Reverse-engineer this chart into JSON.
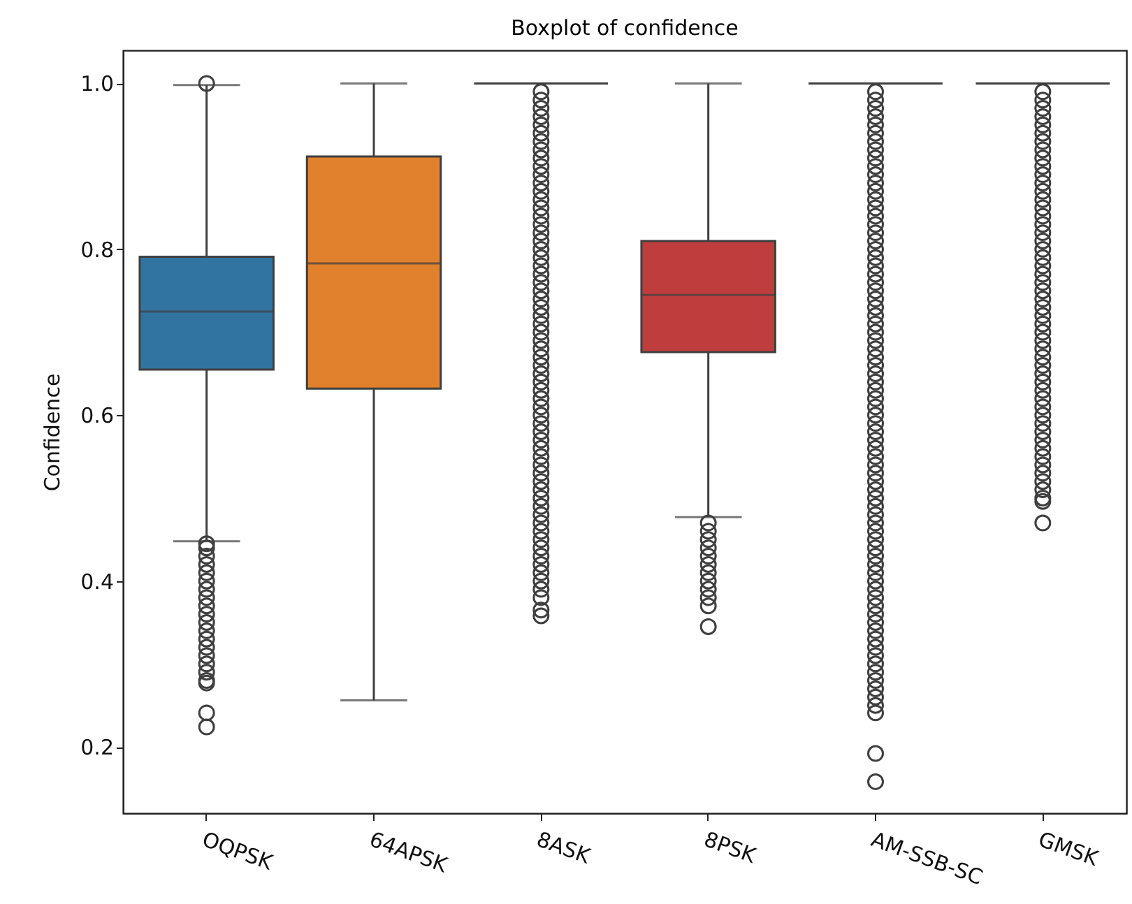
{
  "chart_data": {
    "type": "box",
    "title": "Boxplot of confidence",
    "ylabel": "Confidence",
    "categories": [
      "OQPSK",
      "64APSK",
      "8ASK",
      "8PSK",
      "AM-SSB-SC",
      "GMSK"
    ],
    "colors": [
      "#3274a1",
      "#e1812c",
      null,
      "#c03d3e",
      null,
      null
    ],
    "boxes": [
      {
        "low": 0.448,
        "q1": 0.655,
        "median": 0.725,
        "q3": 0.791,
        "high": 0.998,
        "outliers": [
          1.0,
          0.445,
          0.44,
          0.43,
          0.42,
          0.41,
          0.4,
          0.39,
          0.38,
          0.37,
          0.36,
          0.35,
          0.34,
          0.33,
          0.32,
          0.31,
          0.3,
          0.29,
          0.28,
          0.277,
          0.241,
          0.224
        ]
      },
      {
        "low": 0.256,
        "q1": 0.632,
        "median": 0.783,
        "q3": 0.912,
        "high": 1.0
      },
      {
        "low": 1.0,
        "q1": 1.0,
        "median": 1.0,
        "q3": 1.0,
        "high": 1.0,
        "outliers": [
          0.99,
          0.98,
          0.97,
          0.96,
          0.95,
          0.94,
          0.93,
          0.92,
          0.91,
          0.9,
          0.89,
          0.88,
          0.87,
          0.86,
          0.85,
          0.84,
          0.83,
          0.82,
          0.81,
          0.8,
          0.79,
          0.78,
          0.77,
          0.76,
          0.75,
          0.74,
          0.73,
          0.72,
          0.71,
          0.7,
          0.69,
          0.68,
          0.67,
          0.66,
          0.65,
          0.64,
          0.63,
          0.62,
          0.61,
          0.6,
          0.59,
          0.58,
          0.57,
          0.56,
          0.55,
          0.54,
          0.53,
          0.52,
          0.51,
          0.5,
          0.49,
          0.48,
          0.47,
          0.46,
          0.45,
          0.44,
          0.43,
          0.42,
          0.41,
          0.4,
          0.39,
          0.38,
          0.365,
          0.358
        ]
      },
      {
        "low": 0.477,
        "q1": 0.676,
        "median": 0.745,
        "q3": 0.81,
        "high": 1.0,
        "outliers": [
          0.47,
          0.46,
          0.45,
          0.44,
          0.43,
          0.42,
          0.41,
          0.4,
          0.39,
          0.38,
          0.37,
          0.345
        ]
      },
      {
        "low": 1.0,
        "q1": 1.0,
        "median": 1.0,
        "q3": 1.0,
        "high": 1.0,
        "outliers": [
          0.99,
          0.98,
          0.97,
          0.96,
          0.95,
          0.94,
          0.93,
          0.92,
          0.91,
          0.9,
          0.89,
          0.88,
          0.87,
          0.86,
          0.85,
          0.84,
          0.83,
          0.82,
          0.81,
          0.8,
          0.79,
          0.78,
          0.77,
          0.76,
          0.75,
          0.74,
          0.73,
          0.72,
          0.71,
          0.7,
          0.69,
          0.68,
          0.67,
          0.66,
          0.65,
          0.64,
          0.63,
          0.62,
          0.61,
          0.6,
          0.59,
          0.58,
          0.57,
          0.56,
          0.55,
          0.54,
          0.53,
          0.52,
          0.51,
          0.5,
          0.49,
          0.48,
          0.47,
          0.46,
          0.45,
          0.44,
          0.43,
          0.42,
          0.41,
          0.4,
          0.39,
          0.38,
          0.37,
          0.36,
          0.35,
          0.34,
          0.33,
          0.32,
          0.31,
          0.3,
          0.29,
          0.28,
          0.27,
          0.26,
          0.25,
          0.241,
          0.192,
          0.158
        ]
      },
      {
        "low": 1.0,
        "q1": 1.0,
        "median": 1.0,
        "q3": 1.0,
        "high": 1.0,
        "outliers": [
          0.99,
          0.98,
          0.97,
          0.96,
          0.95,
          0.94,
          0.93,
          0.92,
          0.91,
          0.9,
          0.89,
          0.88,
          0.87,
          0.86,
          0.85,
          0.84,
          0.83,
          0.82,
          0.81,
          0.8,
          0.79,
          0.78,
          0.77,
          0.76,
          0.75,
          0.74,
          0.73,
          0.72,
          0.71,
          0.7,
          0.69,
          0.68,
          0.67,
          0.66,
          0.65,
          0.64,
          0.63,
          0.62,
          0.61,
          0.6,
          0.59,
          0.58,
          0.57,
          0.56,
          0.55,
          0.54,
          0.53,
          0.52,
          0.51,
          0.5,
          0.496,
          0.47
        ]
      }
    ],
    "ylim": [
      0.12,
      1.04
    ],
    "yticks": [
      0.2,
      0.4,
      0.6,
      0.8,
      {
        "value": 1,
        "label": "1.0"
      }
    ]
  }
}
